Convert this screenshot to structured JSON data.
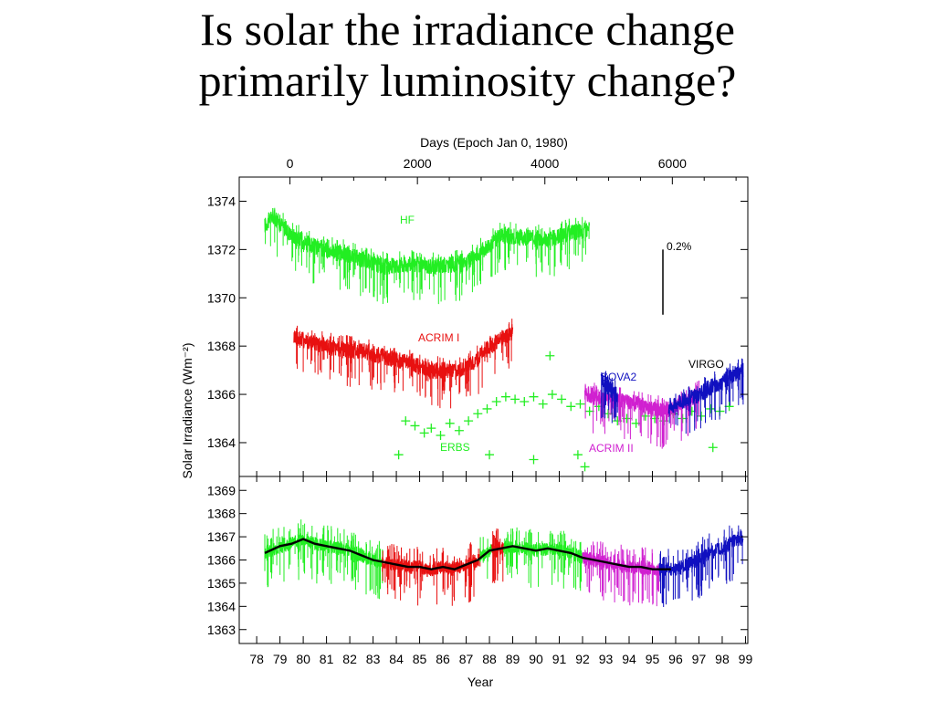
{
  "slide": {
    "title_line1": "Is solar the irradiance change",
    "title_line2": "primarily luminosity change?"
  },
  "chart_data": [
    {
      "type": "line",
      "panel": "top",
      "x_top_label": "Days (Epoch Jan 0, 1980)",
      "x_top_ticks": [
        0,
        2000,
        4000,
        6000
      ],
      "ylabel": "Solar Irradiance (Wm⁻²)",
      "ylim": [
        1362.6,
        1375.0
      ],
      "y_ticks": [
        1364,
        1366,
        1368,
        1370,
        1372,
        1374
      ],
      "scale_bar_label": "0.2%",
      "scale_bar_range": [
        1369.3,
        1372.0
      ],
      "colors": {
        "HF": "#22ee22",
        "ACRIM I": "#e81010",
        "ERBS": "#22ee22",
        "SOVA2": "#1010c0",
        "ACRIM II": "#d020d0",
        "VIRGO": "#1010c0"
      },
      "series": [
        {
          "name": "HF",
          "style": "noisy-line",
          "points": [
            [
              1978.85,
              1373.0
            ],
            [
              1979.2,
              1373.4
            ],
            [
              1980.0,
              1372.6
            ],
            [
              1981.0,
              1372.1
            ],
            [
              1982.0,
              1371.9
            ],
            [
              1983.0,
              1371.6
            ],
            [
              1984.0,
              1371.3
            ],
            [
              1985.0,
              1371.4
            ],
            [
              1986.0,
              1371.3
            ],
            [
              1987.0,
              1371.4
            ],
            [
              1987.5,
              1371.4
            ],
            [
              1988.0,
              1371.8
            ],
            [
              1988.5,
              1372.2
            ],
            [
              1989.0,
              1372.6
            ],
            [
              1990.0,
              1372.5
            ],
            [
              1991.0,
              1372.4
            ],
            [
              1992.0,
              1372.7
            ],
            [
              1992.8,
              1372.8
            ]
          ]
        },
        {
          "name": "ACRIM I",
          "style": "noisy-line",
          "points": [
            [
              1980.1,
              1368.4
            ],
            [
              1981.0,
              1368.1
            ],
            [
              1982.0,
              1367.9
            ],
            [
              1983.0,
              1367.8
            ],
            [
              1983.8,
              1367.6
            ],
            [
              1984.2,
              1367.5
            ],
            [
              1985.0,
              1367.3
            ],
            [
              1986.0,
              1367.0
            ],
            [
              1987.0,
              1367.0
            ],
            [
              1987.5,
              1367.1
            ],
            [
              1988.0,
              1367.5
            ],
            [
              1988.5,
              1368.0
            ],
            [
              1989.5,
              1368.6
            ]
          ]
        },
        {
          "name": "ERBS",
          "style": "crosses",
          "points": [
            [
              1984.9,
              1364.9
            ],
            [
              1985.3,
              1364.7
            ],
            [
              1985.7,
              1364.4
            ],
            [
              1986.0,
              1364.6
            ],
            [
              1986.4,
              1364.3
            ],
            [
              1986.8,
              1364.8
            ],
            [
              1987.2,
              1364.5
            ],
            [
              1987.6,
              1364.9
            ],
            [
              1988.0,
              1365.2
            ],
            [
              1988.4,
              1365.4
            ],
            [
              1988.8,
              1365.7
            ],
            [
              1989.2,
              1365.9
            ],
            [
              1989.6,
              1365.8
            ],
            [
              1990.0,
              1365.7
            ],
            [
              1990.4,
              1365.9
            ],
            [
              1990.8,
              1365.6
            ],
            [
              1991.2,
              1366.0
            ],
            [
              1991.6,
              1365.8
            ],
            [
              1992.0,
              1365.5
            ],
            [
              1992.4,
              1365.6
            ],
            [
              1992.8,
              1365.3
            ],
            [
              1993.2,
              1365.5
            ],
            [
              1993.6,
              1365.2
            ],
            [
              1994.0,
              1364.9
            ],
            [
              1994.4,
              1365.0
            ],
            [
              1994.8,
              1364.8
            ],
            [
              1995.2,
              1365.1
            ],
            [
              1995.6,
              1365.0
            ],
            [
              1996.0,
              1364.9
            ],
            [
              1996.4,
              1365.2
            ],
            [
              1996.8,
              1365.0
            ],
            [
              1997.2,
              1365.3
            ],
            [
              1997.6,
              1365.1
            ],
            [
              1998.0,
              1365.4
            ],
            [
              1998.4,
              1365.3
            ],
            [
              1998.8,
              1365.5
            ],
            [
              1984.6,
              1363.5
            ],
            [
              1988.5,
              1363.5
            ],
            [
              1990.4,
              1363.3
            ],
            [
              1991.1,
              1367.6
            ],
            [
              1992.3,
              1363.5
            ],
            [
              1992.6,
              1363.0
            ],
            [
              1998.1,
              1363.8
            ]
          ]
        },
        {
          "name": "ACRIM II",
          "style": "noisy-line",
          "points": [
            [
              1992.6,
              1366.1
            ],
            [
              1993.0,
              1365.9
            ],
            [
              1994.0,
              1365.7
            ],
            [
              1995.0,
              1365.6
            ],
            [
              1995.6,
              1365.4
            ],
            [
              1996.0,
              1365.3
            ],
            [
              1996.6,
              1365.5
            ],
            [
              1997.0,
              1365.7
            ],
            [
              1997.5,
              1366.0
            ]
          ]
        },
        {
          "name": "SOVA2",
          "style": "noisy-line",
          "points": [
            [
              1993.3,
              1366.6
            ],
            [
              1993.7,
              1366.2
            ],
            [
              1994.0,
              1365.9
            ]
          ]
        },
        {
          "name": "VIRGO",
          "style": "noisy-line",
          "points": [
            [
              1996.2,
              1365.5
            ],
            [
              1996.5,
              1365.6
            ],
            [
              1997.0,
              1365.8
            ],
            [
              1997.5,
              1366.0
            ],
            [
              1998.0,
              1366.3
            ],
            [
              1998.5,
              1366.5
            ],
            [
              1999.0,
              1366.8
            ],
            [
              1999.4,
              1367.0
            ]
          ]
        }
      ],
      "annotations": [
        {
          "text": "HF",
          "series": "HF",
          "at": [
            1982.4,
            1373.1
          ]
        },
        {
          "text": "ACRIM I",
          "series": "ACRIM I",
          "at": [
            1986.1,
            1368.2
          ]
        },
        {
          "text": "ERBS",
          "series": "ERBS",
          "at": [
            1985.8,
            1363.7
          ]
        },
        {
          "text": "SOVA2",
          "series": "SOVA2",
          "at": [
            1992.7,
            1366.6
          ]
        },
        {
          "text": "ACRIM II",
          "series": "ACRIM II",
          "at": [
            1992.9,
            1363.7
          ]
        },
        {
          "text": "VIRGO",
          "series": "VIRGO",
          "at": [
            1997.2,
            1367.2
          ]
        }
      ]
    },
    {
      "type": "line",
      "panel": "bottom",
      "xlabel": "Year",
      "x_ticks": [
        "78",
        "79",
        "80",
        "81",
        "82",
        "83",
        "84",
        "85",
        "86",
        "87",
        "88",
        "89",
        "90",
        "91",
        "92",
        "93",
        "94",
        "95",
        "96",
        "97",
        "98",
        "99"
      ],
      "ylim": [
        1362.4,
        1369.6
      ],
      "y_ticks": [
        1363,
        1364,
        1365,
        1366,
        1367,
        1368,
        1369
      ],
      "segments": [
        {
          "color": "#22ee22",
          "from": 1978.85,
          "to": 1983.9
        },
        {
          "color": "#e81010",
          "from": 1983.9,
          "to": 1988.1
        },
        {
          "color": "#22ee22",
          "from": 1988.1,
          "to": 1988.6
        },
        {
          "color": "#e81010",
          "from": 1988.6,
          "to": 1989.1
        },
        {
          "color": "#22ee22",
          "from": 1989.1,
          "to": 1992.5
        },
        {
          "color": "#d020d0",
          "from": 1992.5,
          "to": 1995.8
        },
        {
          "color": "#1010c0",
          "from": 1995.8,
          "to": 1999.4
        }
      ],
      "smoothed": {
        "color": "#000000",
        "points": [
          [
            1978.85,
            1366.3
          ],
          [
            1979.5,
            1366.6
          ],
          [
            1980.0,
            1366.7
          ],
          [
            1980.5,
            1366.9
          ],
          [
            1981.0,
            1366.7
          ],
          [
            1981.5,
            1366.6
          ],
          [
            1982.0,
            1366.5
          ],
          [
            1982.5,
            1366.4
          ],
          [
            1983.0,
            1366.2
          ],
          [
            1983.5,
            1366.0
          ],
          [
            1984.0,
            1365.9
          ],
          [
            1984.5,
            1365.8
          ],
          [
            1985.0,
            1365.7
          ],
          [
            1985.5,
            1365.7
          ],
          [
            1986.0,
            1365.6
          ],
          [
            1986.5,
            1365.7
          ],
          [
            1987.0,
            1365.6
          ],
          [
            1987.5,
            1365.8
          ],
          [
            1988.0,
            1366.0
          ],
          [
            1988.5,
            1366.4
          ],
          [
            1989.0,
            1366.5
          ],
          [
            1989.5,
            1366.6
          ],
          [
            1990.0,
            1366.5
          ],
          [
            1990.5,
            1366.4
          ],
          [
            1991.0,
            1366.5
          ],
          [
            1991.5,
            1366.4
          ],
          [
            1992.0,
            1366.3
          ],
          [
            1992.5,
            1366.1
          ],
          [
            1993.0,
            1366.0
          ],
          [
            1993.5,
            1365.9
          ],
          [
            1994.0,
            1365.8
          ],
          [
            1994.5,
            1365.7
          ],
          [
            1995.0,
            1365.7
          ],
          [
            1995.5,
            1365.6
          ],
          [
            1996.0,
            1365.6
          ],
          [
            1996.3,
            1365.6
          ]
        ]
      }
    }
  ]
}
